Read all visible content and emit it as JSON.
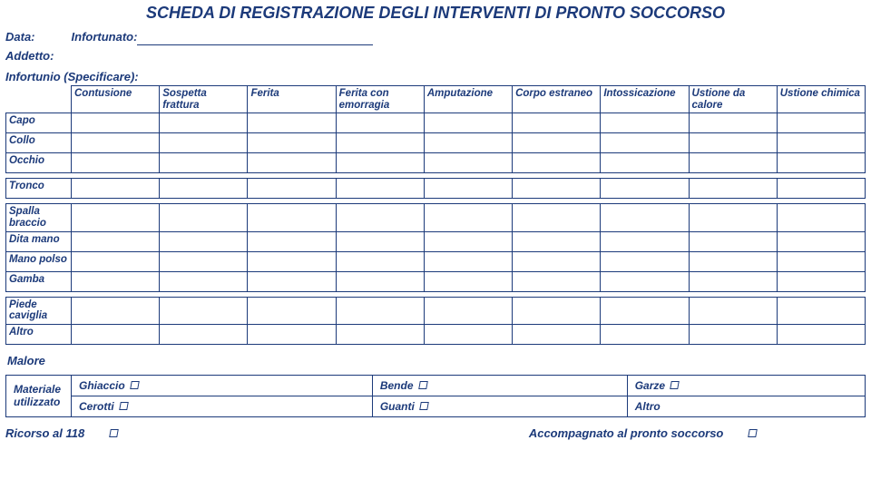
{
  "title": "SCHEDA DI REGISTRAZIONE DEGLI INTERVENTI DI PRONTO SOCCORSO",
  "labels": {
    "data": "Data:",
    "infortunato": "Infortunato:",
    "addetto": "Addetto:",
    "infortunio_spec": "Infortunio (Specificare):",
    "malore": "Malore",
    "materiale": "Materiale utilizzato",
    "ricorso118": "Ricorso al 118",
    "accompagnato": "Accompagnato al pronto soccorso"
  },
  "columns": [
    "Contusione",
    "Sospetta frattura",
    "Ferita",
    "Ferita con emorragia",
    "Amputazione",
    "Corpo estraneo",
    "Intossicazione",
    "Ustione da calore",
    "Ustione chimica"
  ],
  "row_groups": [
    [
      "Capo",
      "Collo",
      "Occhio"
    ],
    [
      "Tronco"
    ],
    [
      "Spalla braccio",
      "Dita mano",
      "Mano polso",
      "Gamba"
    ],
    [
      "Piede caviglia",
      "Altro"
    ]
  ],
  "materials": {
    "row1": [
      "Ghiaccio",
      "Bende",
      "Garze"
    ],
    "row2": [
      "Cerotti",
      "Guanti",
      "Altro"
    ]
  },
  "colors": {
    "primary": "#1c3a7a",
    "background": "#ffffff"
  }
}
